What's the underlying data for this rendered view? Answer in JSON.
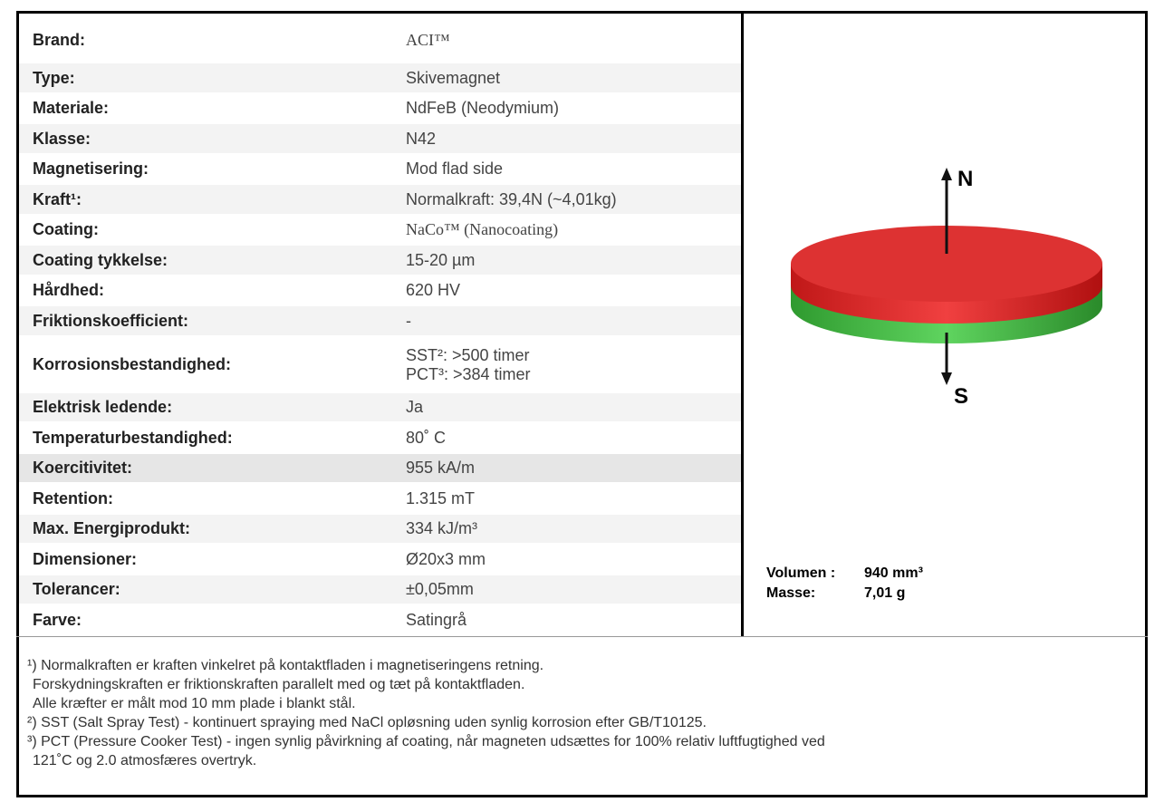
{
  "table": {
    "rows": [
      {
        "label": "Brand:",
        "value": "ACI™"
      },
      {
        "label": "Type:",
        "value": "Skivemagnet"
      },
      {
        "label": "Materiale:",
        "value": "NdFeB (Neodymium)"
      },
      {
        "label": "Klasse:",
        "value": "N42"
      },
      {
        "label": "Magnetisering:",
        "value": "Mod flad side"
      },
      {
        "label": "Kraft¹:",
        "value": "Normalkraft: 39,4N (~4,01kg)"
      },
      {
        "label": "Coating:",
        "value": "NaCo™ (Nanocoating)"
      },
      {
        "label": "Coating tykkelse:",
        "value": "15-20 µm"
      },
      {
        "label": "Hårdhed:",
        "value": "620 HV"
      },
      {
        "label": "Friktionskoefficient:",
        "value": "-"
      },
      {
        "label": "Korrosionsbestandighed:",
        "values": [
          "SST²: >500 timer",
          "PCT³: >384 timer"
        ]
      },
      {
        "label": "Elektrisk ledende:",
        "value": "Ja"
      },
      {
        "label": "Temperaturbestandighed:",
        "value": "80˚ C"
      },
      {
        "label": "Koercitivitet:",
        "value": "955 kA/m"
      },
      {
        "label": "Retention:",
        "value": "1.315 mT"
      },
      {
        "label": "Max. Energiprodukt:",
        "value": "334 kJ/m³"
      },
      {
        "label": "Dimensioner:",
        "value": "Ø20x3 mm"
      },
      {
        "label": "Tolerancer:",
        "value": "±0,05mm"
      },
      {
        "label": "Farve:",
        "value": "Satingrå"
      }
    ]
  },
  "image": {
    "north": "N",
    "south": "S"
  },
  "specs": {
    "volume_label": "Volumen :",
    "volume": "940 mm³",
    "mass_label": "Masse:",
    "mass": "7,01 g"
  },
  "footnotes": [
    {
      "lines": [
        "¹) Normalkraften er kraften vinkelret på kontaktfladen i magnetiseringens retning.",
        "Forskydningskraften er friktionskraften parallelt med og tæt på kontaktfladen.",
        "Alle kræfter er målt mod 10 mm plade i blankt stål."
      ]
    },
    {
      "lines": [
        "²) SST (Salt Spray Test) - kontinuert spraying med NaCl opløsning uden synlig korrosion efter GB/T10125."
      ]
    },
    {
      "lines": [
        "³) PCT (Pressure Cooker Test) - ingen synlig påvirkning af coating, når magneten udsættes for 100% relativ luftfugtighed ved",
        "121˚C og 2.0 atmosfæres overtryk."
      ]
    }
  ]
}
